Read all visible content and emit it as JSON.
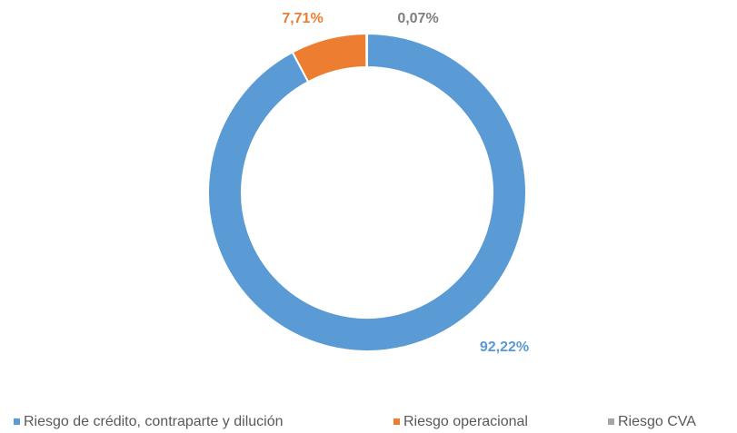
{
  "chart_data": {
    "type": "donut",
    "categories": [
      "Riesgo de crédito, contraparte y dilución",
      "Riesgo operacional",
      "Riesgo CVA"
    ],
    "values": [
      92.22,
      7.71,
      0.07
    ],
    "value_labels": [
      "92,22%",
      "7,71%",
      "0,07%"
    ],
    "colors": [
      "#5b9bd5",
      "#ed7d31",
      "#a5a5a5"
    ],
    "legend": "bottom"
  }
}
